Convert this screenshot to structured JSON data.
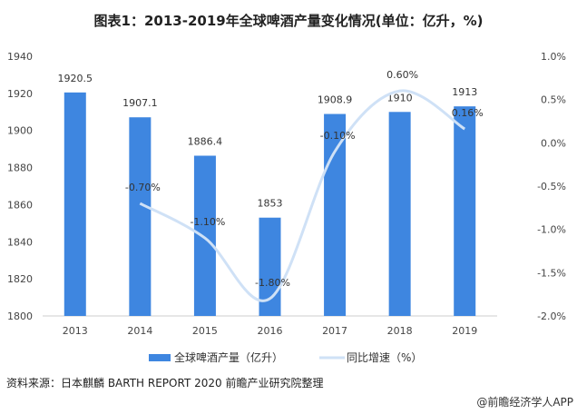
{
  "title": "图表1：2013-2019年全球啤酒产量变化情况(单位：亿升，%)",
  "source": "资料来源：日本麒麟 BARTH REPORT 2020 前瞻产业研究院整理",
  "credit": "@前瞻经济学人APP",
  "chart_data": {
    "type": "bar+line",
    "categories": [
      "2013",
      "2014",
      "2015",
      "2016",
      "2017",
      "2018",
      "2019"
    ],
    "series": [
      {
        "name": "全球啤酒产量（亿升）",
        "type": "bar",
        "axis": "left",
        "color": "#3e86e0",
        "values": [
          1920.5,
          1907.1,
          1886.4,
          1853,
          1908.9,
          1910,
          1913
        ],
        "labels": [
          "1920.5",
          "1907.1",
          "1886.4",
          "1853",
          "1908.9",
          "1910",
          "1913"
        ]
      },
      {
        "name": "同比增速（%）",
        "type": "line",
        "axis": "right",
        "color": "#cfe1f6",
        "smooth": true,
        "values": [
          null,
          -0.7,
          -1.1,
          -1.8,
          -0.1,
          0.6,
          0.16
        ],
        "labels": [
          "",
          "-0.70%",
          "-1.10%",
          "-1.80%",
          "-0.10%",
          "0.60%",
          "0.16%"
        ]
      }
    ],
    "y_left": {
      "range": [
        1800,
        1940
      ],
      "ticks": [
        "1800",
        "1820",
        "1840",
        "1860",
        "1880",
        "1900",
        "1920",
        "1940"
      ]
    },
    "y_right": {
      "range": [
        -2.0,
        1.0
      ],
      "ticks": [
        "-2.0%",
        "-1.5%",
        "-1.0%",
        "-0.5%",
        "0.0%",
        "0.5%",
        "1.0%"
      ]
    },
    "grid": false,
    "legend": "bottom"
  }
}
